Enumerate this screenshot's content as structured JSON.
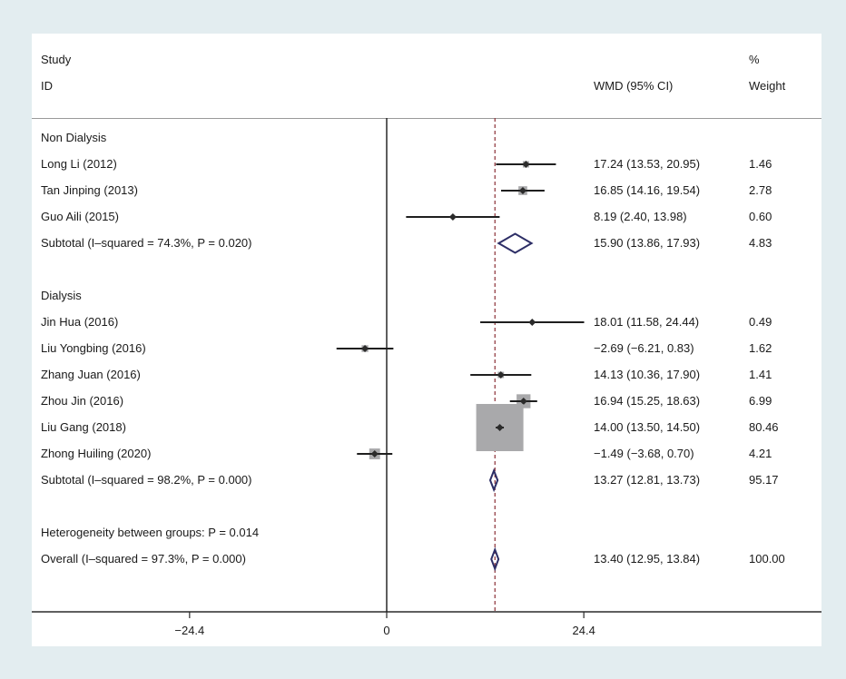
{
  "header": {
    "study": "Study",
    "id": "ID",
    "wmd": "WMD (95% CI)",
    "pct": "%",
    "weight": "Weight"
  },
  "rows": [
    {
      "kind": "group",
      "label": "Non Dialysis"
    },
    {
      "kind": "study",
      "label": "Long Li (2012)",
      "ci_text": "17.24 (13.53, 20.95)",
      "weight_text": "1.46"
    },
    {
      "kind": "study",
      "label": "Tan Jinping (2013)",
      "ci_text": "16.85 (14.16, 19.54)",
      "weight_text": "2.78"
    },
    {
      "kind": "study",
      "label": "Guo Aili (2015)",
      "ci_text": "8.19 (2.40, 13.98)",
      "weight_text": "0.60"
    },
    {
      "kind": "subtotal",
      "label": "Subtotal  (I–squared = 74.3%, P = 0.020)",
      "ci_text": "15.90 (13.86, 17.93)",
      "weight_text": "4.83"
    },
    {
      "kind": "group",
      "label": "Dialysis"
    },
    {
      "kind": "study",
      "label": "Jin Hua (2016)",
      "ci_text": "18.01 (11.58, 24.44)",
      "weight_text": "0.49"
    },
    {
      "kind": "study",
      "label": "Liu Yongbing (2016)",
      "ci_text": "−2.69 (−6.21, 0.83)",
      "weight_text": "1.62"
    },
    {
      "kind": "study",
      "label": "Zhang Juan (2016)",
      "ci_text": "14.13 (10.36, 17.90)",
      "weight_text": "1.41"
    },
    {
      "kind": "study",
      "label": "Zhou Jin (2016)",
      "ci_text": "16.94 (15.25, 18.63)",
      "weight_text": "6.99"
    },
    {
      "kind": "study",
      "label": "Liu Gang (2018)",
      "ci_text": "14.00 (13.50, 14.50)",
      "weight_text": "80.46"
    },
    {
      "kind": "study",
      "label": "Zhong Huiling (2020)",
      "ci_text": "−1.49 (−3.68, 0.70)",
      "weight_text": "4.21"
    },
    {
      "kind": "subtotal",
      "label": "Subtotal  (I–squared = 98.2%, P = 0.000)",
      "ci_text": "13.27 (12.81, 13.73)",
      "weight_text": "95.17"
    },
    {
      "kind": "note",
      "label": "Heterogeneity between groups: P = 0.014"
    },
    {
      "kind": "overall",
      "label": "Overall  (I–squared = 97.3%, P = 0.000)",
      "ci_text": "13.40 (12.95, 13.84)",
      "weight_text": "100.00"
    }
  ],
  "chart_data": {
    "type": "forest",
    "x_ticks": [
      "−24.4",
      "0",
      "24.4"
    ],
    "xlim": [
      -43.6,
      43.3
    ],
    "null_line": 0,
    "overall_line": 13.4,
    "colors": {
      "ci_line": "#1f1f1f",
      "point": "#2b2b2b",
      "weight_box": "#a9a9ab",
      "diamond": "#2d2e66",
      "overall_line": "#8b2f36"
    },
    "studies": [
      {
        "name": "Long Li (2012)",
        "group": "Non Dialysis",
        "wmd": 17.24,
        "lo": 13.53,
        "hi": 20.95,
        "weight": 1.46
      },
      {
        "name": "Tan Jinping (2013)",
        "group": "Non Dialysis",
        "wmd": 16.85,
        "lo": 14.16,
        "hi": 19.54,
        "weight": 2.78
      },
      {
        "name": "Guo Aili (2015)",
        "group": "Non Dialysis",
        "wmd": 8.19,
        "lo": 2.4,
        "hi": 13.98,
        "weight": 0.6
      },
      {
        "name": "Jin Hua (2016)",
        "group": "Dialysis",
        "wmd": 18.01,
        "lo": 11.58,
        "hi": 24.44,
        "weight": 0.49
      },
      {
        "name": "Liu Yongbing (2016)",
        "group": "Dialysis",
        "wmd": -2.69,
        "lo": -6.21,
        "hi": 0.83,
        "weight": 1.62
      },
      {
        "name": "Zhang Juan (2016)",
        "group": "Dialysis",
        "wmd": 14.13,
        "lo": 10.36,
        "hi": 17.9,
        "weight": 1.41
      },
      {
        "name": "Zhou Jin (2016)",
        "group": "Dialysis",
        "wmd": 16.94,
        "lo": 15.25,
        "hi": 18.63,
        "weight": 6.99
      },
      {
        "name": "Liu Gang (2018)",
        "group": "Dialysis",
        "wmd": 14.0,
        "lo": 13.5,
        "hi": 14.5,
        "weight": 80.46
      },
      {
        "name": "Zhong Huiling (2020)",
        "group": "Dialysis",
        "wmd": -1.49,
        "lo": -3.68,
        "hi": 0.7,
        "weight": 4.21
      }
    ],
    "pooled": [
      {
        "name": "Subtotal Non Dialysis",
        "wmd": 15.9,
        "lo": 13.86,
        "hi": 17.93,
        "weight": 4.83
      },
      {
        "name": "Subtotal Dialysis",
        "wmd": 13.27,
        "lo": 12.81,
        "hi": 13.73,
        "weight": 95.17
      },
      {
        "name": "Overall",
        "wmd": 13.4,
        "lo": 12.95,
        "hi": 13.84,
        "weight": 100.0
      }
    ]
  }
}
